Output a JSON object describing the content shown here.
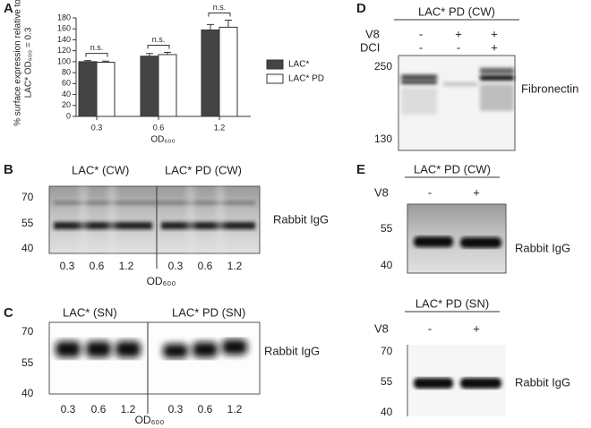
{
  "chart_data": {
    "type": "bar",
    "panel_label": "A",
    "y_label": [
      "% surface expression relative to",
      "LAC* OD₆₀₀ = 0.3"
    ],
    "x_label": "OD₆₀₀",
    "categories": [
      "0.3",
      "0.6",
      "1.2"
    ],
    "series": [
      {
        "name": "LAC*",
        "color": "#444444",
        "values": [
          100,
          110,
          158
        ],
        "errors": [
          2,
          5,
          10
        ]
      },
      {
        "name": "LAC* PD",
        "color": "#ffffff",
        "values": [
          99,
          113,
          163
        ],
        "errors": [
          2,
          4,
          13
        ]
      }
    ],
    "annotations": [
      "n.s.",
      "n.s.",
      "n.s."
    ],
    "ylim": [
      0,
      180
    ],
    "yticks": [
      0,
      20,
      40,
      60,
      80,
      100,
      120,
      140,
      160,
      180
    ]
  },
  "panels": [
    {
      "letter": "B",
      "headers": [
        "LAC* (CW)",
        "LAC* PD (CW)"
      ],
      "markers": [
        70,
        55,
        40
      ],
      "lanes": [
        "0.3",
        "0.6",
        "1.2",
        "0.3",
        "0.6",
        "1.2"
      ],
      "x_label": "OD₆₀₀",
      "band_label": "Rabbit IgG"
    },
    {
      "letter": "C",
      "headers": [
        "LAC*  (SN)",
        "LAC* PD (SN)"
      ],
      "markers": [
        70,
        55,
        40
      ],
      "lanes": [
        "0.3",
        "0.6",
        "1.2",
        "0.3",
        "0.6",
        "1.2"
      ],
      "x_label": "OD₆₀₀",
      "band_label": "Rabbit IgG"
    },
    {
      "letter": "D",
      "headers": [
        "LAC* PD (CW)"
      ],
      "rows": [
        {
          "label": "V8",
          "marks": [
            "-",
            "+",
            "+"
          ]
        },
        {
          "label": "DCI",
          "marks": [
            "-",
            "-",
            "+"
          ]
        }
      ],
      "markers": [
        250,
        130
      ],
      "band_label": "Fibronectin"
    },
    {
      "letter": "E",
      "headers": [
        "LAC* PD (CW)"
      ],
      "rows": [
        {
          "label": "V8",
          "marks": [
            "-",
            "+"
          ]
        }
      ],
      "markers": [
        55,
        40
      ],
      "band_label": "Rabbit IgG"
    },
    {
      "headers": [
        "LAC* PD (SN)"
      ],
      "rows": [
        {
          "label": "V8",
          "marks": [
            "-",
            "+"
          ]
        }
      ],
      "markers": [
        70,
        55,
        40
      ],
      "band_label": "Rabbit IgG"
    }
  ]
}
